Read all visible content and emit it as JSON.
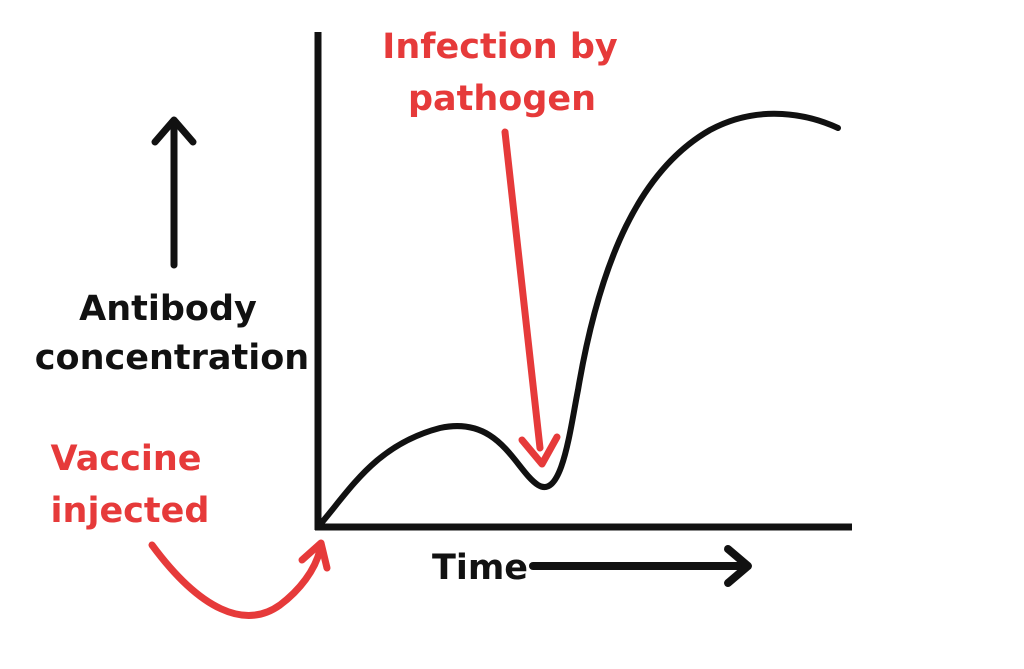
{
  "labels": {
    "y_axis_line1": "Antibody",
    "y_axis_line2": "concentration",
    "x_axis": "Time",
    "infection_line1": "Infection by",
    "infection_line2": "pathogen",
    "vaccine_line1": "Vaccine",
    "vaccine_line2": "injected"
  },
  "colors": {
    "axis": "#111111",
    "curve": "#111111",
    "annotation": "#e63a3a"
  }
}
